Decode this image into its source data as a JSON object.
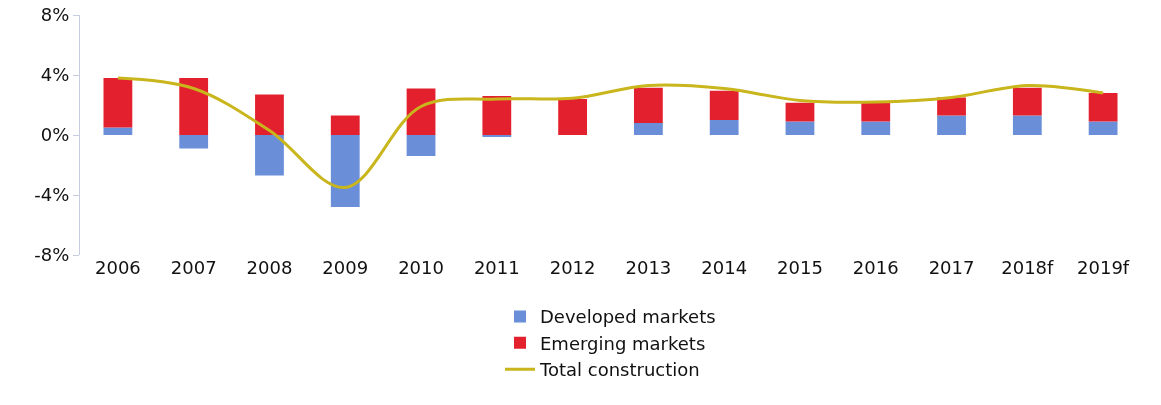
{
  "chart_data": {
    "type": "bar",
    "stacked": true,
    "categories": [
      "2006",
      "2007",
      "2008",
      "2009",
      "2010",
      "2011",
      "2012",
      "2013",
      "2014",
      "2015",
      "2016",
      "2017",
      "2018f",
      "2019f"
    ],
    "series": [
      {
        "name": "Developed markets",
        "color": "#6a8fd8",
        "values": [
          0.5,
          -0.9,
          -2.7,
          -4.8,
          -1.4,
          -0.1,
          0,
          0.8,
          1.0,
          0.9,
          0.9,
          1.3,
          1.3,
          0.9
        ]
      },
      {
        "name": "Emerging markets",
        "color": "#e3202e",
        "values": [
          3.3,
          3.8,
          2.7,
          1.3,
          3.1,
          2.6,
          2.4,
          2.35,
          1.95,
          1.25,
          1.25,
          1.2,
          1.85,
          1.9
        ]
      },
      {
        "name": "Total construction",
        "type": "line",
        "color": "#c9b51c",
        "values": [
          3.8,
          3.1,
          0.3,
          -3.5,
          1.9,
          2.4,
          2.45,
          3.3,
          3.1,
          2.3,
          2.2,
          2.5,
          3.3,
          2.8
        ]
      }
    ],
    "ylim": [
      -8,
      8
    ],
    "yticks": [
      {
        "value": -8,
        "label": "-8%"
      },
      {
        "value": -4,
        "label": "-4%"
      },
      {
        "value": 0,
        "label": "0%"
      },
      {
        "value": 4,
        "label": "4%"
      },
      {
        "value": 8,
        "label": "8%"
      }
    ],
    "grid": false,
    "legend": "bottom",
    "marker": "none",
    "line_style": "solid"
  }
}
